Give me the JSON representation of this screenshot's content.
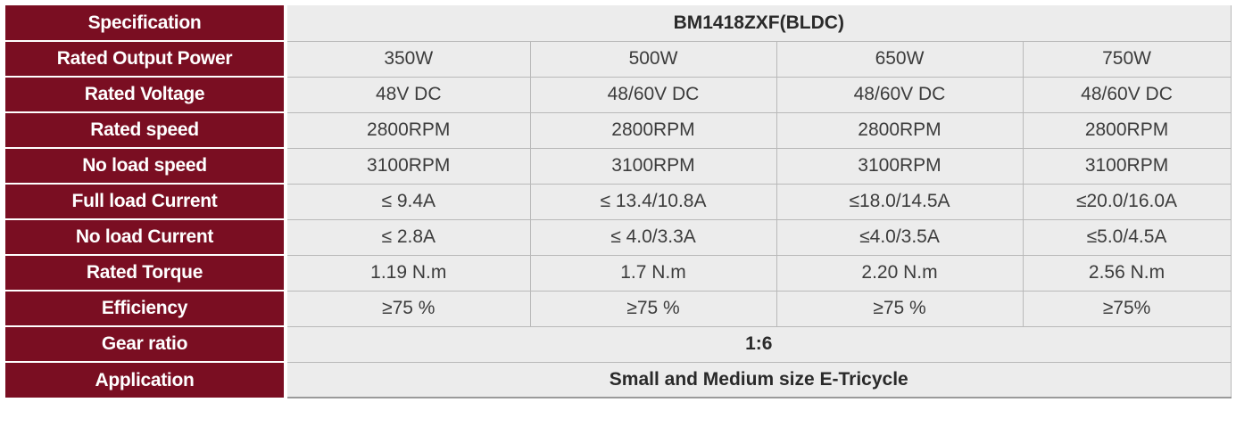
{
  "model": "BM1418ZXF(BLDC)",
  "rows": [
    {
      "label": "Rated Output Power",
      "values": [
        "350W",
        "500W",
        "650W",
        "750W"
      ]
    },
    {
      "label": "Rated Voltage",
      "values": [
        "48V DC",
        "48/60V DC",
        "48/60V DC",
        "48/60V DC"
      ]
    },
    {
      "label": "Rated speed",
      "values": [
        "2800RPM",
        "2800RPM",
        "2800RPM",
        "2800RPM"
      ]
    },
    {
      "label": "No load speed",
      "values": [
        "3100RPM",
        "3100RPM",
        "3100RPM",
        "3100RPM"
      ]
    },
    {
      "label": "Full load Current",
      "values": [
        "≤  9.4A",
        "≤  13.4/10.8A",
        "≤18.0/14.5A",
        "≤20.0/16.0A"
      ]
    },
    {
      "label": "No load Current",
      "values": [
        "≤  2.8A",
        "≤   4.0/3.3A",
        "≤4.0/3.5A",
        "≤5.0/4.5A"
      ]
    },
    {
      "label": "Rated Torque",
      "values": [
        "1.19 N.m",
        "1.7 N.m",
        "2.20 N.m",
        "2.56 N.m"
      ]
    },
    {
      "label": "Efficiency",
      "values": [
        "≥75 %",
        "≥75 %",
        "≥75 %",
        "≥75%"
      ]
    }
  ],
  "header_label": "Specification",
  "gear_ratio": {
    "label": "Gear ratio",
    "value": "1:6"
  },
  "application": {
    "label": "Application",
    "value": "Small and Medium size E-Tricycle"
  }
}
